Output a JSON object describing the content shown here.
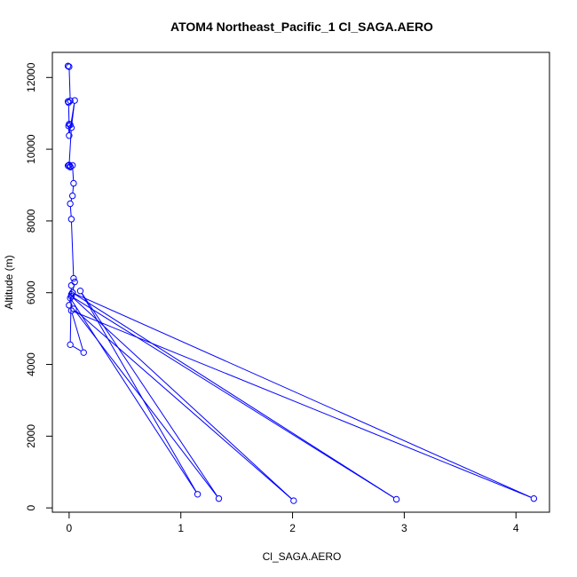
{
  "chart_data": {
    "type": "line",
    "title": "ATOM4 Northeast_Pacific_1 Cl_SAGA.AERO",
    "xlabel": "Cl_SAGA.AERO",
    "ylabel": "Altitude (m)",
    "xlim": [
      -0.15,
      4.3
    ],
    "ylim": [
      -120,
      12700
    ],
    "x_ticks": [
      0,
      1,
      2,
      3,
      4
    ],
    "y_ticks": [
      0,
      2000,
      4000,
      6000,
      8000,
      10000,
      12000
    ],
    "line_color": "#0000ff",
    "marker": "open-circle",
    "grid": false,
    "series": [
      {
        "x": [
          -0.01,
          0.0,
          0.01,
          -0.01,
          -0.005,
          0.0,
          0.01,
          -0.005,
          0.0,
          0.05,
          0.02,
          0.0,
          -0.01,
          0.01,
          0.01,
          0.0,
          0.03,
          0.04,
          0.03,
          0.01,
          0.02,
          0.04,
          0.05,
          0.03,
          0.02,
          0.0,
          0.01,
          1.15,
          0.1,
          1.34,
          0.04,
          2.01,
          0.02,
          2.93,
          0.03,
          4.16,
          0.02,
          0.13,
          0.01,
          0.02
        ],
        "y": [
          12320,
          12300,
          11350,
          11330,
          11300,
          10700,
          10680,
          10650,
          10380,
          11360,
          10600,
          9550,
          9540,
          9520,
          9500,
          9560,
          9550,
          9050,
          8700,
          8480,
          8050,
          6400,
          6300,
          6000,
          5950,
          5650,
          5850,
          380,
          6050,
          260,
          5550,
          200,
          5900,
          240,
          6000,
          260,
          5500,
          4330,
          4550,
          6200
        ]
      }
    ]
  }
}
